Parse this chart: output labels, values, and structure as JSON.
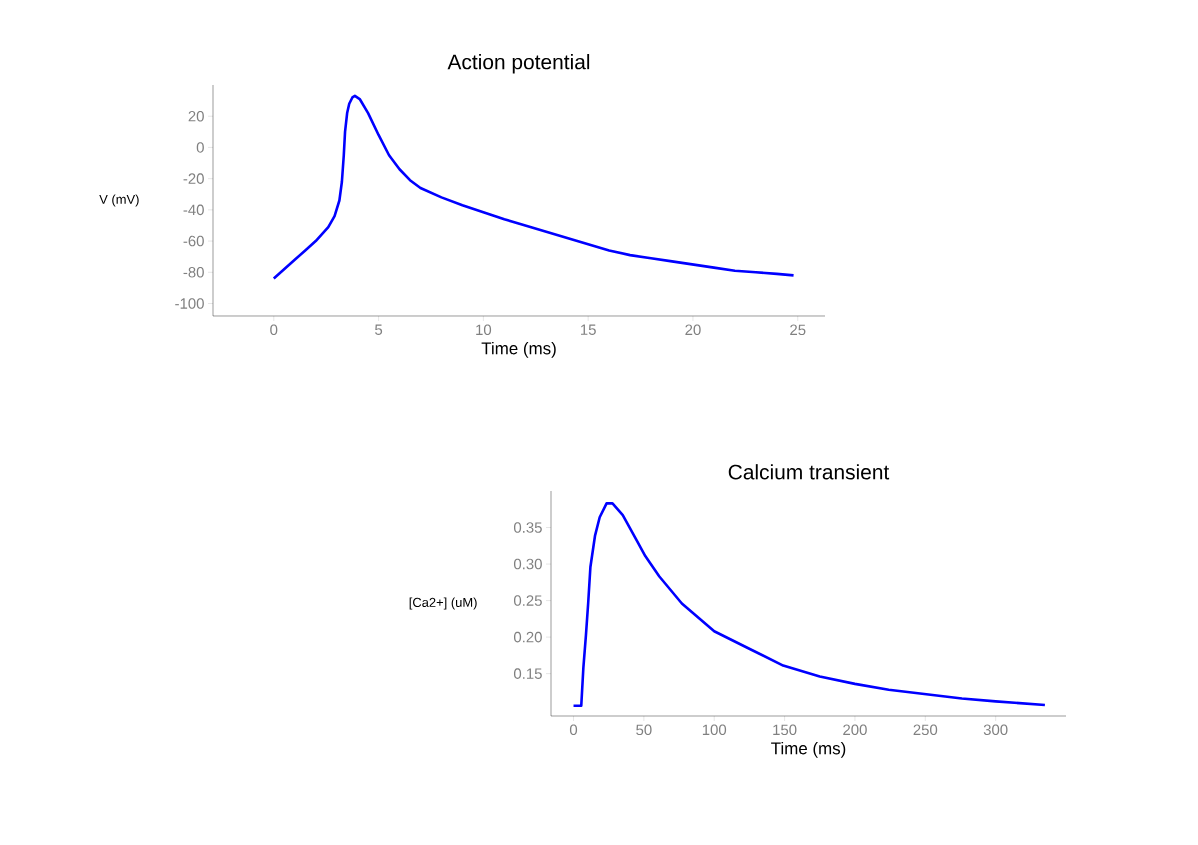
{
  "chart_data": [
    {
      "type": "line",
      "title": "Action potential",
      "xlabel": "Time (ms)",
      "ylabel": "V (mV)",
      "x": [
        0,
        0.5,
        1,
        1.5,
        2,
        2.6,
        2.9,
        3.13,
        3.25,
        3.34,
        3.4,
        3.5,
        3.6,
        3.75,
        3.87,
        4.1,
        4.5,
        5,
        5.5,
        6,
        6.5,
        7,
        8,
        9,
        10,
        11,
        12,
        13,
        14,
        15,
        16,
        17,
        18,
        19,
        20,
        21,
        22,
        23,
        24,
        24.8
      ],
      "series": [
        {
          "color": "#0000ff",
          "values": [
            -84,
            -78,
            -72,
            -66,
            -60,
            -51,
            -44,
            -34,
            -22,
            -5,
            10,
            22,
            28,
            32,
            33,
            31,
            22,
            8,
            -5,
            -14,
            -21,
            -26,
            -32,
            -37,
            -41.5,
            -46,
            -50,
            -54,
            -58,
            -62,
            -66,
            -69,
            -71,
            -73,
            -75,
            -77,
            -79,
            -80,
            -81,
            -82
          ]
        }
      ],
      "xlim": [
        -2.9,
        26.3
      ],
      "ylim": [
        -108,
        40
      ],
      "xticks": [
        0,
        5,
        10,
        15,
        20,
        25
      ],
      "yticks": [
        -100,
        -80,
        -60,
        -40,
        -20,
        0,
        20
      ]
    },
    {
      "type": "line",
      "title": "Calcium transient",
      "xlabel": "Time (ms)",
      "ylabel": "[Ca2+] (uM)",
      "x": [
        0,
        5.5,
        7,
        8.8,
        10.4,
        12,
        15.3,
        18.6,
        23.5,
        27.7,
        35,
        44.7,
        51,
        61,
        77,
        100,
        126,
        149,
        175,
        200,
        224,
        250,
        276,
        300,
        335
      ],
      "series": [
        {
          "color": "#0000ff",
          "values": [
            0.106,
            0.106,
            0.158,
            0.202,
            0.246,
            0.296,
            0.339,
            0.364,
            0.383,
            0.383,
            0.367,
            0.333,
            0.311,
            0.283,
            0.246,
            0.208,
            0.183,
            0.161,
            0.146,
            0.136,
            0.128,
            0.122,
            0.116,
            0.112,
            0.107
          ]
        }
      ],
      "xlim": [
        -16,
        350
      ],
      "ylim": [
        0.092,
        0.4
      ],
      "xticks": [
        0,
        50,
        100,
        150,
        200,
        250,
        300
      ],
      "yticks": [
        0.15,
        {
          "value": 0.2,
          "label": "0.20"
        },
        0.25,
        {
          "value": 0.3,
          "label": "0.30"
        },
        0.35
      ]
    }
  ]
}
